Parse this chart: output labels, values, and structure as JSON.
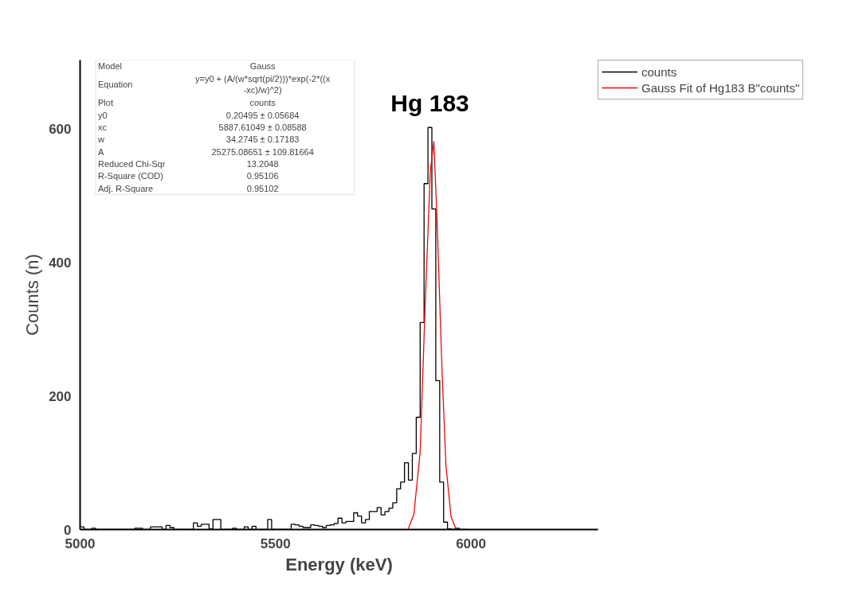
{
  "chart_data": {
    "type": "step",
    "xlabel": "Energy (keV)",
    "ylabel": "Counts (n)",
    "xlim": [
      5000,
      6325
    ],
    "ylim": [
      0,
      703
    ],
    "xticks": [
      5000,
      5500,
      6000
    ],
    "yticks": [
      0,
      200,
      400,
      600
    ],
    "grid": false,
    "legend": "top right",
    "series": [
      {
        "name": "counts",
        "color": "#000000",
        "x": [
          5000,
          5010,
          5020,
          5030,
          5040,
          5050,
          5060,
          5070,
          5080,
          5090,
          5100,
          5110,
          5120,
          5130,
          5140,
          5150,
          5160,
          5170,
          5180,
          5190,
          5200,
          5210,
          5220,
          5230,
          5240,
          5250,
          5260,
          5270,
          5280,
          5290,
          5300,
          5310,
          5320,
          5330,
          5340,
          5350,
          5360,
          5370,
          5380,
          5390,
          5400,
          5410,
          5420,
          5430,
          5440,
          5450,
          5460,
          5470,
          5480,
          5490,
          5500,
          5510,
          5520,
          5530,
          5540,
          5550,
          5560,
          5570,
          5580,
          5590,
          5600,
          5610,
          5620,
          5630,
          5640,
          5650,
          5660,
          5670,
          5680,
          5690,
          5700,
          5710,
          5720,
          5730,
          5740,
          5750,
          5760,
          5770,
          5780,
          5790,
          5800,
          5810,
          5820,
          5830,
          5840,
          5850,
          5860,
          5870,
          5880,
          5890,
          5900,
          5910,
          5920,
          5930,
          5940,
          5950,
          5960,
          5970,
          5980,
          5990
        ],
        "values": [
          4,
          0,
          0,
          2,
          0,
          0,
          0,
          0,
          0,
          0,
          0,
          0,
          0,
          0,
          2,
          2,
          0,
          0,
          4,
          4,
          4,
          0,
          6,
          3,
          0,
          0,
          0,
          0,
          0,
          10,
          5,
          8,
          8,
          1,
          15,
          15,
          0,
          0,
          0,
          2,
          0,
          0,
          4,
          0,
          5,
          0,
          0,
          0,
          15,
          0,
          0,
          0,
          0,
          0,
          8,
          7,
          5,
          3,
          3,
          7,
          6,
          5,
          3,
          6,
          7,
          9,
          17,
          10,
          12,
          12,
          25,
          20,
          10,
          15,
          27,
          27,
          33,
          22,
          27,
          32,
          40,
          61,
          71,
          100,
          74,
          114,
          168,
          310,
          518,
          602,
          480,
          223,
          71,
          11,
          1,
          0,
          2,
          0,
          0,
          0
        ]
      },
      {
        "name": "Gauss Fit of Hg183 B\"counts\"",
        "color": "#ff0000",
        "type": "line",
        "x": [
          5839,
          5854,
          5870,
          5883,
          5896,
          5905,
          5913,
          5926,
          5936,
          5949,
          5962
        ],
        "values": [
          0,
          23,
          116,
          339,
          537,
          581,
          467,
          238,
          96,
          19,
          0
        ]
      }
    ],
    "annotations": [
      {
        "text": "Hg 183",
        "x": 5895,
        "y": 602
      },
      "Model",
      "Gauss",
      "Equation",
      "y=y0 + (A/(w*sqrt(pi/2)))*exp(-2*((x\n-xc)/w)^2)",
      "Plot",
      "counts",
      "y0",
      "0.20495 ± 0.05684",
      "xc",
      "5887.61049 ± 0.08588",
      "w",
      "34.2745 ± 0.17183",
      "A",
      "25275.08651 ± 109.81664",
      "Reduced Chi-Sqr",
      "13.2048",
      "R-Square (COD)",
      "0.95106",
      "Adj. R-Square",
      "0.95102"
    ]
  }
}
